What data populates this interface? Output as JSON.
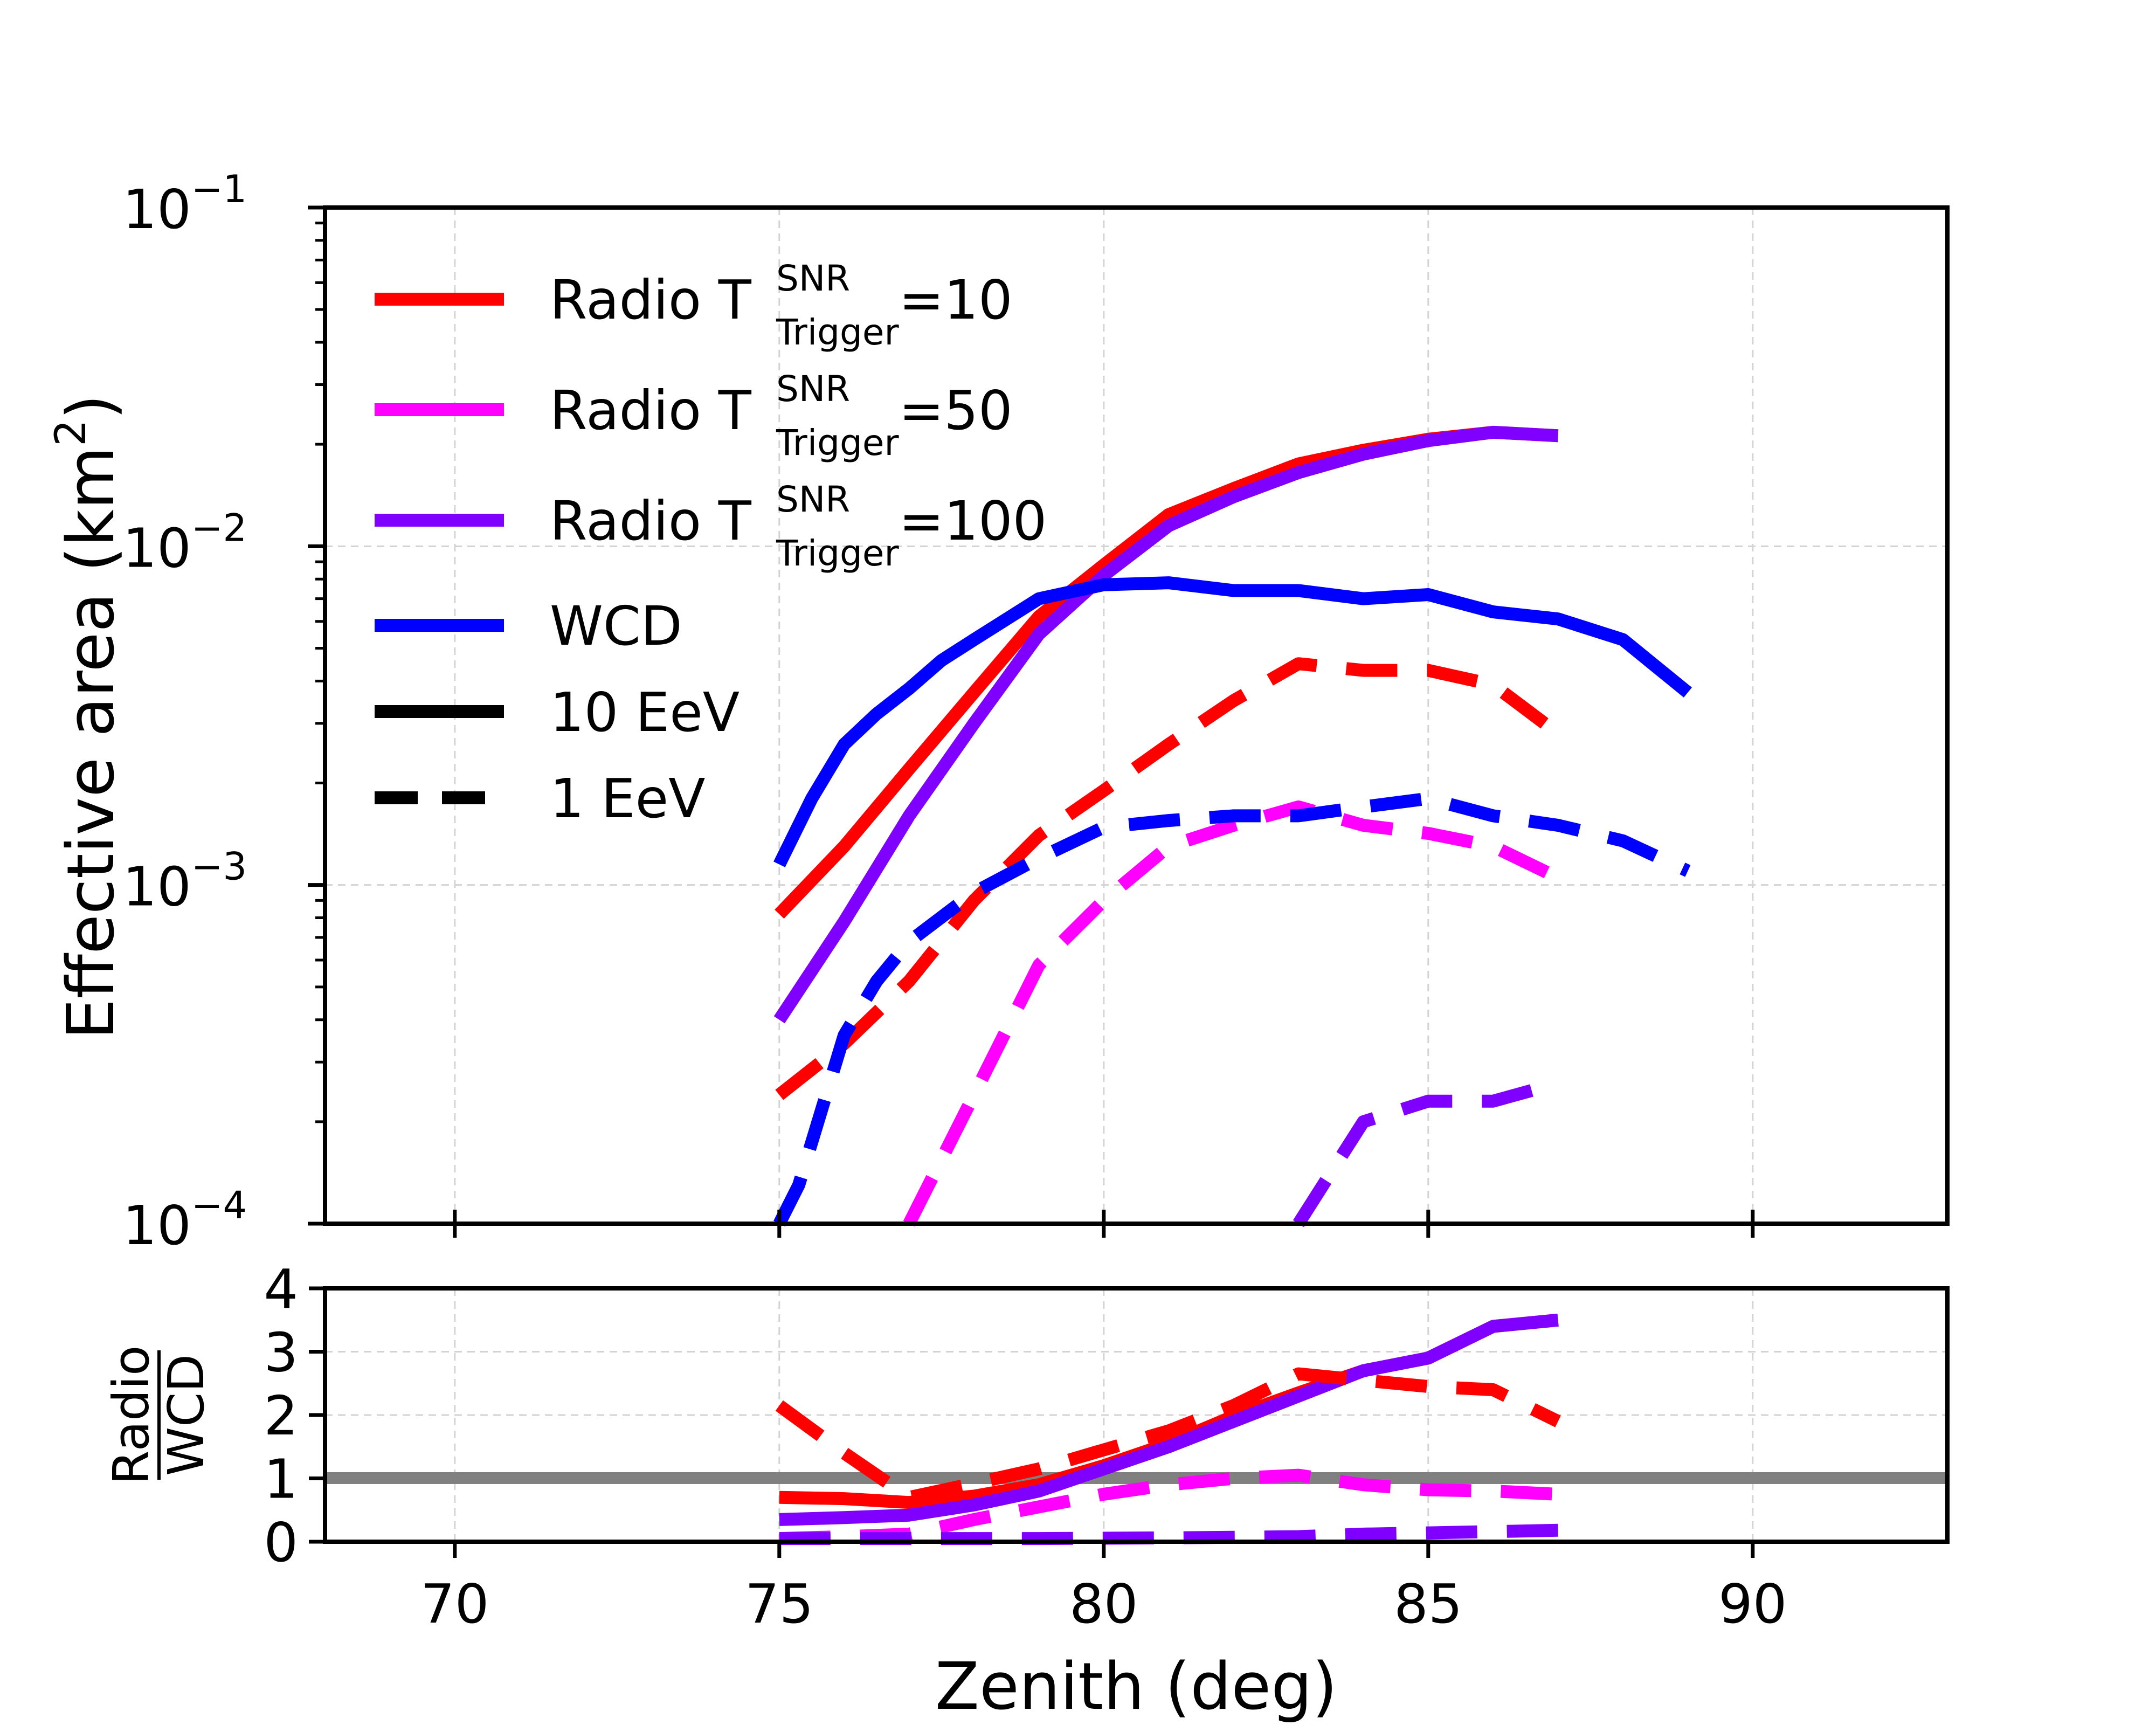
{
  "chart_data": [
    {
      "type": "line",
      "panel": "main",
      "xlabel": "Zenith (deg)",
      "ylabel": "Effective area (km²)",
      "ylabel_base": "Effective area (km",
      "ylabel_sup": "2",
      "ylabel_end": ")",
      "yscale": "log",
      "xlim": [
        68,
        93
      ],
      "ylim": [
        0.0001,
        0.1
      ],
      "xticks": [
        70,
        75,
        80,
        85,
        90
      ],
      "xtick_labels": [
        "70",
        "75",
        "80",
        "85",
        "90"
      ],
      "yticks": [
        {
          "value": 0.1,
          "base": "10",
          "exp": "−1"
        },
        {
          "value": 0.01,
          "base": "10",
          "exp": "−2"
        },
        {
          "value": 0.001,
          "base": "10",
          "exp": "−3"
        },
        {
          "value": 0.0001,
          "base": "10",
          "exp": "−4"
        }
      ],
      "grid": true,
      "legend_position": "top-left",
      "legend": [
        {
          "prefix": "Radio T",
          "sup": "SNR",
          "sub": "Trigger",
          "suffix": "=10",
          "color": "#ff0000",
          "style": "solid"
        },
        {
          "prefix": "Radio T",
          "sup": "SNR",
          "sub": "Trigger",
          "suffix": "=50",
          "color": "#ff00ff",
          "style": "solid"
        },
        {
          "prefix": "Radio T",
          "sup": "SNR",
          "sub": "Trigger",
          "suffix": "=100",
          "color": "#8000ff",
          "style": "solid"
        },
        {
          "prefix": "WCD",
          "sup": "",
          "sub": "",
          "suffix": "",
          "color": "#0000ff",
          "style": "solid"
        },
        {
          "prefix": "10 EeV",
          "sup": "",
          "sub": "",
          "suffix": "",
          "color": "#000000",
          "style": "solid"
        },
        {
          "prefix": "1 EeV",
          "sup": "",
          "sub": "",
          "suffix": "",
          "color": "#000000",
          "style": "dashed"
        }
      ],
      "series": [
        {
          "name": "Radio T=10, 10 EeV",
          "color": "#ff0000",
          "style": "solid",
          "x": [
            75,
            76,
            77,
            78,
            79,
            80,
            81,
            82,
            83,
            84,
            85,
            86,
            87
          ],
          "y": [
            0.00082,
            0.0013,
            0.0022,
            0.0037,
            0.0062,
            0.0088,
            0.0124,
            0.0148,
            0.0175,
            0.0192,
            0.0207,
            0.0217,
            0.0212
          ]
        },
        {
          "name": "Radio T=100, 10 EeV",
          "color": "#8000ff",
          "style": "solid",
          "x": [
            75,
            76,
            77,
            78,
            79,
            80,
            81,
            82,
            83,
            84,
            85,
            86,
            87
          ],
          "y": [
            0.0004,
            0.00078,
            0.0016,
            0.003,
            0.0055,
            0.0082,
            0.0115,
            0.014,
            0.0165,
            0.0187,
            0.0205,
            0.0217,
            0.0212
          ]
        },
        {
          "name": "WCD, 10 EeV",
          "color": "#0000ff",
          "style": "solid",
          "x": [
            75,
            75.5,
            76,
            76.5,
            77,
            77.5,
            78,
            79,
            80,
            81,
            82,
            83,
            84,
            85,
            86,
            87,
            88,
            89
          ],
          "y": [
            0.00115,
            0.0018,
            0.0026,
            0.0032,
            0.0038,
            0.0046,
            0.0053,
            0.007,
            0.0077,
            0.0078,
            0.0074,
            0.0074,
            0.007,
            0.0072,
            0.0064,
            0.0061,
            0.0053,
            0.0037
          ]
        },
        {
          "name": "Radio T=10, 1 EeV",
          "color": "#ff0000",
          "style": "dashed",
          "x": [
            75,
            76,
            77,
            78,
            79,
            80,
            81,
            82,
            83,
            84,
            85,
            86,
            87
          ],
          "y": [
            0.00024,
            0.00034,
            0.00052,
            0.0009,
            0.0014,
            0.0019,
            0.0026,
            0.0035,
            0.0045,
            0.0043,
            0.0043,
            0.0039,
            0.0028
          ]
        },
        {
          "name": "Radio T=50, 1 EeV",
          "color": "#ff00ff",
          "style": "dashed",
          "x": [
            77,
            78,
            79,
            80,
            81,
            82,
            83,
            84,
            85,
            86,
            87
          ],
          "y": [
            0.0001,
            0.00024,
            0.00058,
            0.0009,
            0.0013,
            0.0015,
            0.0017,
            0.0015,
            0.00142,
            0.0013,
            0.00105
          ]
        },
        {
          "name": "Radio T=100, 1 EeV",
          "color": "#8000ff",
          "style": "dashed",
          "x": [
            83,
            84,
            85,
            86,
            87
          ],
          "y": [
            0.0001,
            0.0002,
            0.00023,
            0.00023,
            0.00026
          ]
        },
        {
          "name": "WCD, 1 EeV",
          "color": "#0000ff",
          "style": "dashed",
          "x": [
            75,
            75.3,
            76,
            76.5,
            77,
            78,
            79,
            80,
            81,
            82,
            83,
            84,
            85,
            86,
            87,
            88,
            89
          ],
          "y": [
            0.0001,
            0.00013,
            0.00036,
            0.00052,
            0.00068,
            0.00095,
            0.0012,
            0.00148,
            0.00155,
            0.0016,
            0.0016,
            0.0017,
            0.0018,
            0.0016,
            0.0015,
            0.00135,
            0.0011
          ]
        }
      ]
    },
    {
      "type": "line",
      "panel": "ratio",
      "ylabel_num": "Radio",
      "ylabel_den": "WCD",
      "xlabel": "Zenith (deg)",
      "xlim": [
        68,
        93
      ],
      "ylim": [
        0,
        4
      ],
      "yticks": [
        0,
        1,
        2,
        3,
        4
      ],
      "ytick_labels": [
        "0",
        "1",
        "2",
        "3",
        "4"
      ],
      "grid": true,
      "reference_line": {
        "y": 1,
        "color": "#808080"
      },
      "series": [
        {
          "name": "Radio T=10 / WCD, 10 EeV",
          "color": "#ff0000",
          "style": "solid",
          "x": [
            75,
            76,
            77,
            78,
            79,
            80,
            81,
            82,
            83,
            84,
            85,
            86,
            87
          ],
          "y": [
            0.7,
            0.68,
            0.62,
            0.72,
            0.9,
            1.2,
            1.55,
            1.98,
            2.35,
            2.7,
            2.9,
            3.4,
            3.5
          ]
        },
        {
          "name": "Radio T=100 / WCD, 10 EeV",
          "color": "#8000ff",
          "style": "solid",
          "x": [
            75,
            76,
            77,
            78,
            79,
            80,
            81,
            82,
            83,
            84,
            85,
            86,
            87
          ],
          "y": [
            0.35,
            0.38,
            0.42,
            0.58,
            0.8,
            1.15,
            1.5,
            1.9,
            2.3,
            2.7,
            2.9,
            3.4,
            3.5
          ]
        },
        {
          "name": "Radio T=10 / WCD, 1 EeV",
          "color": "#ff0000",
          "style": "dashed",
          "x": [
            75,
            76,
            77,
            78,
            79,
            80,
            81,
            82,
            83,
            84,
            85,
            86,
            87
          ],
          "y": [
            2.15,
            1.4,
            0.7,
            0.92,
            1.15,
            1.45,
            1.75,
            2.15,
            2.65,
            2.55,
            2.45,
            2.4,
            1.9
          ]
        },
        {
          "name": "Radio T=50 / WCD, 1 EeV",
          "color": "#ff00ff",
          "style": "dashed",
          "x": [
            75,
            76,
            77,
            78,
            79,
            80,
            81,
            82,
            83,
            84,
            85,
            86,
            87
          ],
          "y": [
            0.05,
            0.08,
            0.12,
            0.35,
            0.55,
            0.75,
            0.9,
            1.0,
            1.05,
            0.9,
            0.82,
            0.8,
            0.75
          ]
        },
        {
          "name": "Radio T=100 / WCD, 1 EeV",
          "color": "#8000ff",
          "style": "dashed",
          "x": [
            75,
            77,
            79,
            81,
            83,
            84,
            85,
            86,
            87
          ],
          "y": [
            0.05,
            0.05,
            0.05,
            0.06,
            0.08,
            0.12,
            0.14,
            0.16,
            0.18
          ]
        }
      ]
    }
  ]
}
